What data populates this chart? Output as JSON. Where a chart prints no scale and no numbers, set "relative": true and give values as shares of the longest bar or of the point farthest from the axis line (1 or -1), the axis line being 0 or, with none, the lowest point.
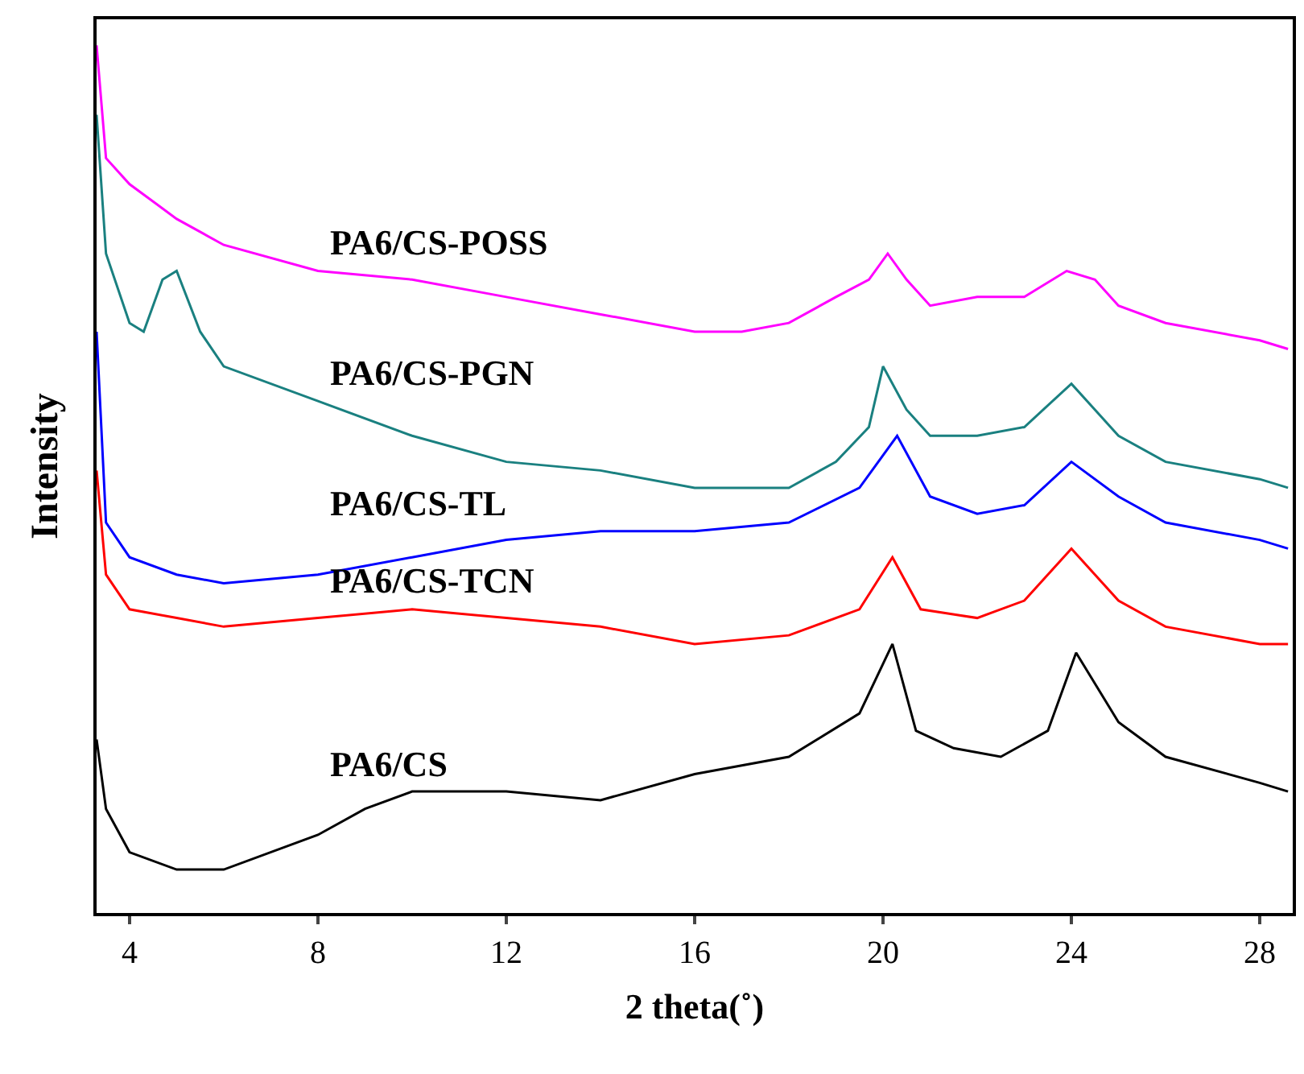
{
  "chart_data": {
    "type": "line",
    "relative": true,
    "xlabel": "2 theta(˚)",
    "ylabel": "Intensity",
    "xlim": [
      3.3,
      28.7
    ],
    "xticks": [
      4,
      8,
      12,
      16,
      20,
      24,
      28
    ],
    "legend": false,
    "marker": "none",
    "line_style": "solid",
    "series": [
      {
        "name": "PA6/CS-POSS",
        "color": "#ff00ff",
        "x": [
          3.3,
          3.5,
          4,
          5,
          6,
          8,
          10,
          12,
          14,
          16,
          17,
          18,
          19,
          19.7,
          20.1,
          20.5,
          21,
          22,
          23,
          23.9,
          24.5,
          25,
          26,
          28,
          28.6
        ],
        "values": [
          1.0,
          0.87,
          0.84,
          0.8,
          0.77,
          0.74,
          0.73,
          0.71,
          0.69,
          0.67,
          0.67,
          0.68,
          0.71,
          0.73,
          0.76,
          0.73,
          0.7,
          0.71,
          0.71,
          0.74,
          0.73,
          0.7,
          0.68,
          0.66,
          0.65
        ]
      },
      {
        "name": "PA6/CS-PGN",
        "color": "#1a8080",
        "x": [
          3.3,
          3.5,
          4,
          4.3,
          4.7,
          5,
          5.5,
          6,
          8,
          10,
          12,
          14,
          16,
          18,
          19,
          19.7,
          20,
          20.5,
          21,
          22,
          23,
          24,
          25,
          26,
          28,
          28.6
        ],
        "values": [
          0.92,
          0.76,
          0.68,
          0.67,
          0.73,
          0.74,
          0.67,
          0.63,
          0.59,
          0.55,
          0.52,
          0.51,
          0.49,
          0.49,
          0.52,
          0.56,
          0.63,
          0.58,
          0.55,
          0.55,
          0.56,
          0.61,
          0.55,
          0.52,
          0.5,
          0.49
        ]
      },
      {
        "name": "PA6/CS-TL",
        "color": "#0000ff",
        "x": [
          3.3,
          3.5,
          4,
          5,
          6,
          8,
          10,
          12,
          14,
          16,
          18,
          19.5,
          20.3,
          21,
          22,
          23,
          24,
          25,
          26,
          28,
          28.6
        ],
        "values": [
          0.67,
          0.45,
          0.41,
          0.39,
          0.38,
          0.39,
          0.41,
          0.43,
          0.44,
          0.44,
          0.45,
          0.49,
          0.55,
          0.48,
          0.46,
          0.47,
          0.52,
          0.48,
          0.45,
          0.43,
          0.42
        ]
      },
      {
        "name": "PA6/CS-TCN",
        "color": "#ff0000",
        "x": [
          3.3,
          3.5,
          4,
          5,
          6,
          8,
          10,
          12,
          14,
          16,
          18,
          19.5,
          20.2,
          20.8,
          22,
          23,
          24,
          25,
          26,
          28,
          28.6
        ],
        "values": [
          0.51,
          0.39,
          0.35,
          0.34,
          0.33,
          0.34,
          0.35,
          0.34,
          0.33,
          0.31,
          0.32,
          0.35,
          0.41,
          0.35,
          0.34,
          0.36,
          0.42,
          0.36,
          0.33,
          0.31,
          0.31
        ]
      },
      {
        "name": "PA6/CS",
        "color": "#000000",
        "x": [
          3.3,
          3.5,
          4,
          5,
          6,
          8,
          9,
          10,
          12,
          14,
          16,
          18,
          19.5,
          20.2,
          20.7,
          21.5,
          22.5,
          23.5,
          24.1,
          25,
          26,
          28,
          28.6
        ],
        "values": [
          0.2,
          0.12,
          0.07,
          0.05,
          0.05,
          0.09,
          0.12,
          0.14,
          0.14,
          0.13,
          0.16,
          0.18,
          0.23,
          0.31,
          0.21,
          0.19,
          0.18,
          0.21,
          0.3,
          0.22,
          0.18,
          0.15,
          0.14
        ]
      }
    ]
  }
}
